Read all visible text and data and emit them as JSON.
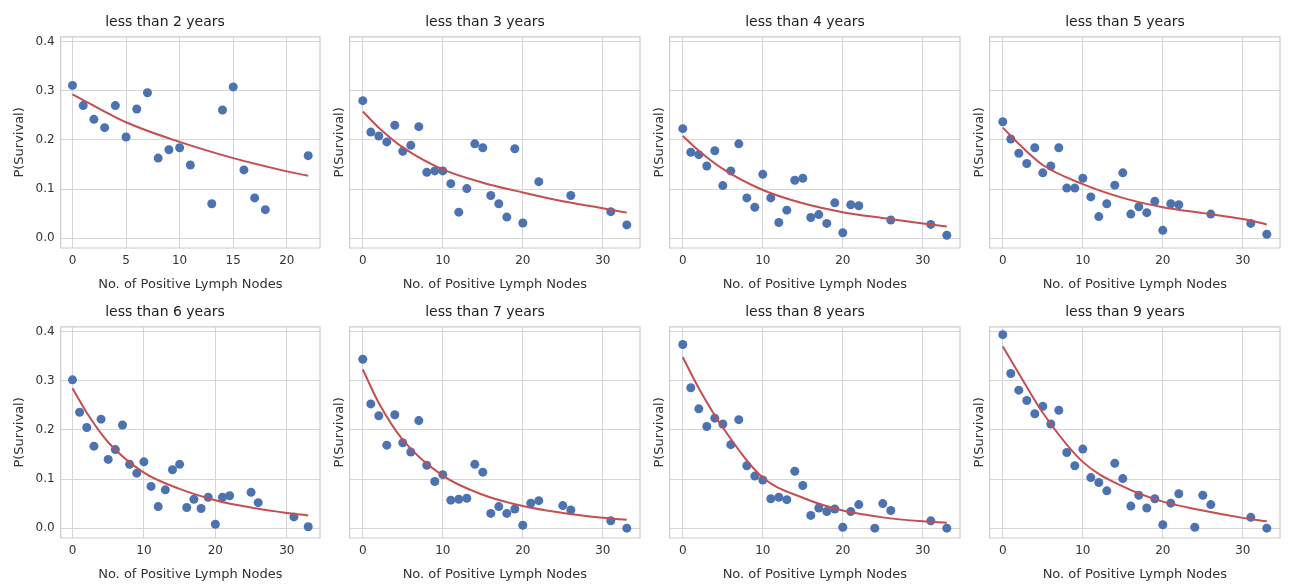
{
  "chart_data": [
    {
      "type": "scatter",
      "title": "less than 2 years",
      "xlabel": "No. of Positive Lymph Nodes",
      "ylabel": "P(Survival)",
      "xlim": [
        -1.1,
        23.1
      ],
      "xticks": [
        0,
        5,
        10,
        15,
        20
      ],
      "ylim": [
        -0.02,
        0.41
      ],
      "yticks": [
        {
          "value": 0,
          "label": "0.0"
        },
        0.1,
        0.2,
        0.3,
        0.4
      ],
      "grid": true,
      "series": [
        {
          "marker": "circle",
          "color": "#4c72b0",
          "x": [
            0,
            1,
            2,
            3,
            4,
            5,
            6,
            7,
            8,
            9,
            10,
            11,
            13,
            14,
            15,
            16,
            17,
            18,
            22
          ],
          "values": [
            0.311,
            0.27,
            0.242,
            0.225,
            0.27,
            0.206,
            0.263,
            0.296,
            0.163,
            0.18,
            0.184,
            0.149,
            0.07,
            0.261,
            0.308,
            0.139,
            0.082,
            0.058,
            0.168
          ]
        },
        {
          "type": "line",
          "color": "#c44e52",
          "x": [
            0,
            5,
            10,
            15,
            20,
            22
          ],
          "values": [
            0.293,
            0.236,
            0.196,
            0.163,
            0.136,
            0.127
          ]
        }
      ]
    },
    {
      "type": "scatter",
      "title": "less than 3 years",
      "xlabel": "No. of Positive Lymph Nodes",
      "ylabel": "P(Survival)",
      "xlim": [
        -1.65,
        34.65
      ],
      "xticks": [
        0,
        10,
        20,
        30
      ],
      "ylim": [
        -0.02,
        0.41
      ],
      "yticks": [
        0,
        0.1,
        0.2,
        0.3,
        0.4
      ],
      "tick_labels": "x",
      "grid": true,
      "series": [
        {
          "marker": "circle",
          "color": "#4c72b0",
          "x": [
            0,
            1,
            2,
            3,
            4,
            5,
            6,
            7,
            8,
            9,
            10,
            11,
            12,
            13,
            14,
            15,
            16,
            17,
            18,
            19,
            20,
            22,
            26,
            31,
            33
          ],
          "values": [
            0.28,
            0.216,
            0.208,
            0.196,
            0.23,
            0.177,
            0.189,
            0.227,
            0.134,
            0.137,
            0.137,
            0.111,
            0.053,
            0.101,
            0.192,
            0.184,
            0.087,
            0.07,
            0.043,
            0.182,
            0.031,
            0.115,
            0.087,
            0.054,
            0.027
          ]
        },
        {
          "type": "line",
          "color": "#c44e52",
          "x": [
            0,
            2,
            5,
            10,
            15,
            20,
            25,
            30,
            33
          ],
          "values": [
            0.258,
            0.225,
            0.185,
            0.14,
            0.113,
            0.093,
            0.075,
            0.061,
            0.052
          ]
        }
      ]
    },
    {
      "type": "scatter",
      "title": "less than 4 years",
      "xlabel": "No. of Positive Lymph Nodes",
      "ylabel": "P(Survival)",
      "xlim": [
        -1.65,
        34.65
      ],
      "xticks": [
        0,
        10,
        20,
        30
      ],
      "ylim": [
        -0.02,
        0.41
      ],
      "yticks": [
        0,
        0.1,
        0.2,
        0.3,
        0.4
      ],
      "tick_labels": "x",
      "grid": true,
      "series": [
        {
          "marker": "circle",
          "color": "#4c72b0",
          "x": [
            0,
            1,
            2,
            3,
            4,
            5,
            6,
            7,
            8,
            9,
            10,
            11,
            12,
            13,
            14,
            15,
            16,
            17,
            18,
            19,
            20,
            21,
            22,
            26,
            31,
            33
          ],
          "values": [
            0.223,
            0.175,
            0.17,
            0.147,
            0.178,
            0.107,
            0.137,
            0.192,
            0.082,
            0.063,
            0.13,
            0.082,
            0.032,
            0.057,
            0.118,
            0.122,
            0.042,
            0.048,
            0.03,
            0.072,
            0.011,
            0.068,
            0.066,
            0.037,
            0.028,
            0.006
          ]
        },
        {
          "type": "line",
          "color": "#c44e52",
          "x": [
            0,
            2,
            5,
            10,
            15,
            20,
            25,
            30,
            33
          ],
          "values": [
            0.208,
            0.178,
            0.141,
            0.098,
            0.071,
            0.053,
            0.041,
            0.03,
            0.024
          ]
        }
      ]
    },
    {
      "type": "scatter",
      "title": "less than 5 years",
      "xlabel": "No. of Positive Lymph Nodes",
      "ylabel": "P(Survival)",
      "xlim": [
        -1.65,
        34.65
      ],
      "xticks": [
        0,
        10,
        20,
        30
      ],
      "ylim": [
        -0.02,
        0.41
      ],
      "yticks": [
        0,
        0.1,
        0.2,
        0.3,
        0.4
      ],
      "tick_labels": "x",
      "grid": true,
      "series": [
        {
          "marker": "circle",
          "color": "#4c72b0",
          "x": [
            0,
            1,
            2,
            3,
            4,
            5,
            6,
            7,
            8,
            9,
            10,
            11,
            12,
            13,
            14,
            15,
            16,
            17,
            18,
            19,
            20,
            21,
            22,
            26,
            31,
            33
          ],
          "values": [
            0.237,
            0.202,
            0.173,
            0.152,
            0.184,
            0.133,
            0.147,
            0.184,
            0.102,
            0.102,
            0.122,
            0.084,
            0.044,
            0.07,
            0.108,
            0.133,
            0.049,
            0.064,
            0.052,
            0.075,
            0.016,
            0.07,
            0.068,
            0.049,
            0.03,
            0.008
          ]
        },
        {
          "type": "line",
          "color": "#c44e52",
          "x": [
            0,
            2,
            5,
            10,
            15,
            20,
            25,
            30,
            33
          ],
          "values": [
            0.225,
            0.192,
            0.149,
            0.11,
            0.082,
            0.063,
            0.051,
            0.039,
            0.028
          ]
        }
      ]
    },
    {
      "type": "scatter",
      "title": "less than 6 years",
      "xlabel": "No. of Positive Lymph Nodes",
      "ylabel": "P(Survival)",
      "xlim": [
        -1.65,
        34.65
      ],
      "xticks": [
        0,
        10,
        20,
        30
      ],
      "ylim": [
        -0.02,
        0.41
      ],
      "yticks": [
        {
          "value": 0,
          "label": "0.0"
        },
        0.1,
        0.2,
        0.3,
        0.4
      ],
      "grid": true,
      "series": [
        {
          "marker": "circle",
          "color": "#4c72b0",
          "x": [
            0,
            1,
            2,
            3,
            4,
            5,
            6,
            7,
            8,
            9,
            10,
            11,
            12,
            13,
            14,
            15,
            16,
            17,
            18,
            19,
            20,
            21,
            22,
            25,
            26,
            31,
            33
          ],
          "values": [
            0.302,
            0.236,
            0.205,
            0.167,
            0.222,
            0.14,
            0.16,
            0.21,
            0.13,
            0.112,
            0.135,
            0.085,
            0.044,
            0.078,
            0.119,
            0.13,
            0.042,
            0.059,
            0.04,
            0.063,
            0.008,
            0.063,
            0.066,
            0.073,
            0.052,
            0.023,
            0.003
          ]
        },
        {
          "type": "line",
          "color": "#c44e52",
          "x": [
            0,
            2,
            5,
            10,
            15,
            20,
            25,
            30,
            33
          ],
          "values": [
            0.285,
            0.235,
            0.175,
            0.113,
            0.08,
            0.057,
            0.042,
            0.031,
            0.026
          ]
        }
      ]
    },
    {
      "type": "scatter",
      "title": "less than 7 years",
      "xlabel": "No. of Positive Lymph Nodes",
      "ylabel": "P(Survival)",
      "xlim": [
        -1.65,
        34.65
      ],
      "xticks": [
        0,
        10,
        20,
        30
      ],
      "ylim": [
        -0.02,
        0.41
      ],
      "yticks": [
        0,
        0.1,
        0.2,
        0.3,
        0.4
      ],
      "tick_labels": "x",
      "grid": true,
      "series": [
        {
          "marker": "circle",
          "color": "#4c72b0",
          "x": [
            0,
            1,
            2,
            3,
            4,
            5,
            6,
            7,
            8,
            9,
            10,
            11,
            12,
            13,
            14,
            15,
            16,
            17,
            18,
            19,
            20,
            21,
            22,
            25,
            26,
            31,
            33
          ],
          "values": [
            0.344,
            0.253,
            0.229,
            0.169,
            0.231,
            0.174,
            0.155,
            0.219,
            0.128,
            0.095,
            0.109,
            0.057,
            0.059,
            0.061,
            0.13,
            0.114,
            0.03,
            0.044,
            0.03,
            0.039,
            0.006,
            0.051,
            0.056,
            0.046,
            0.037,
            0.015,
            0.0
          ]
        },
        {
          "type": "line",
          "color": "#c44e52",
          "x": [
            0,
            2,
            5,
            10,
            15,
            20,
            25,
            30,
            33
          ],
          "values": [
            0.323,
            0.255,
            0.18,
            0.107,
            0.068,
            0.045,
            0.031,
            0.021,
            0.017
          ]
        }
      ]
    },
    {
      "type": "scatter",
      "title": "less than 8 years",
      "xlabel": "No. of Positive Lymph Nodes",
      "ylabel": "P(Survival)",
      "xlim": [
        -1.65,
        34.65
      ],
      "xticks": [
        0,
        10,
        20,
        30
      ],
      "ylim": [
        -0.02,
        0.41
      ],
      "yticks": [
        0,
        0.1,
        0.2,
        0.3,
        0.4
      ],
      "tick_labels": "x",
      "grid": true,
      "series": [
        {
          "marker": "circle",
          "color": "#4c72b0",
          "x": [
            0,
            1,
            2,
            3,
            4,
            5,
            6,
            7,
            8,
            9,
            10,
            11,
            12,
            13,
            14,
            15,
            16,
            17,
            18,
            19,
            20,
            21,
            22,
            24,
            25,
            26,
            31,
            33
          ],
          "values": [
            0.374,
            0.286,
            0.243,
            0.207,
            0.224,
            0.212,
            0.17,
            0.221,
            0.127,
            0.106,
            0.098,
            0.06,
            0.063,
            0.058,
            0.116,
            0.087,
            0.026,
            0.041,
            0.034,
            0.039,
            0.002,
            0.034,
            0.048,
            0.0,
            0.05,
            0.036,
            0.015,
            0.0
          ]
        },
        {
          "type": "line",
          "color": "#c44e52",
          "x": [
            0,
            2,
            5,
            10,
            15,
            20,
            25,
            30,
            33
          ],
          "values": [
            0.348,
            0.285,
            0.205,
            0.103,
            0.062,
            0.036,
            0.022,
            0.014,
            0.011
          ]
        }
      ]
    },
    {
      "type": "scatter",
      "title": "less than 9 years",
      "xlabel": "No. of Positive Lymph Nodes",
      "ylabel": "P(Survival)",
      "xlim": [
        -1.65,
        34.65
      ],
      "xticks": [
        0,
        10,
        20,
        30
      ],
      "ylim": [
        -0.02,
        0.41
      ],
      "yticks": [
        0,
        0.1,
        0.2,
        0.3,
        0.4
      ],
      "tick_labels": "x",
      "grid": true,
      "series": [
        {
          "marker": "circle",
          "color": "#4c72b0",
          "x": [
            0,
            1,
            2,
            3,
            4,
            5,
            6,
            7,
            8,
            9,
            10,
            11,
            12,
            13,
            14,
            15,
            16,
            17,
            18,
            19,
            20,
            21,
            22,
            24,
            25,
            26,
            31,
            33
          ],
          "values": [
            0.394,
            0.315,
            0.281,
            0.26,
            0.233,
            0.248,
            0.212,
            0.24,
            0.154,
            0.127,
            0.161,
            0.103,
            0.093,
            0.076,
            0.132,
            0.101,
            0.045,
            0.067,
            0.041,
            0.06,
            0.007,
            0.051,
            0.07,
            0.002,
            0.067,
            0.048,
            0.022,
            0.0
          ]
        },
        {
          "type": "line",
          "color": "#c44e52",
          "x": [
            0,
            2,
            5,
            10,
            15,
            20,
            25,
            30,
            33
          ],
          "values": [
            0.37,
            0.315,
            0.235,
            0.135,
            0.085,
            0.054,
            0.036,
            0.021,
            0.014
          ]
        }
      ]
    }
  ]
}
